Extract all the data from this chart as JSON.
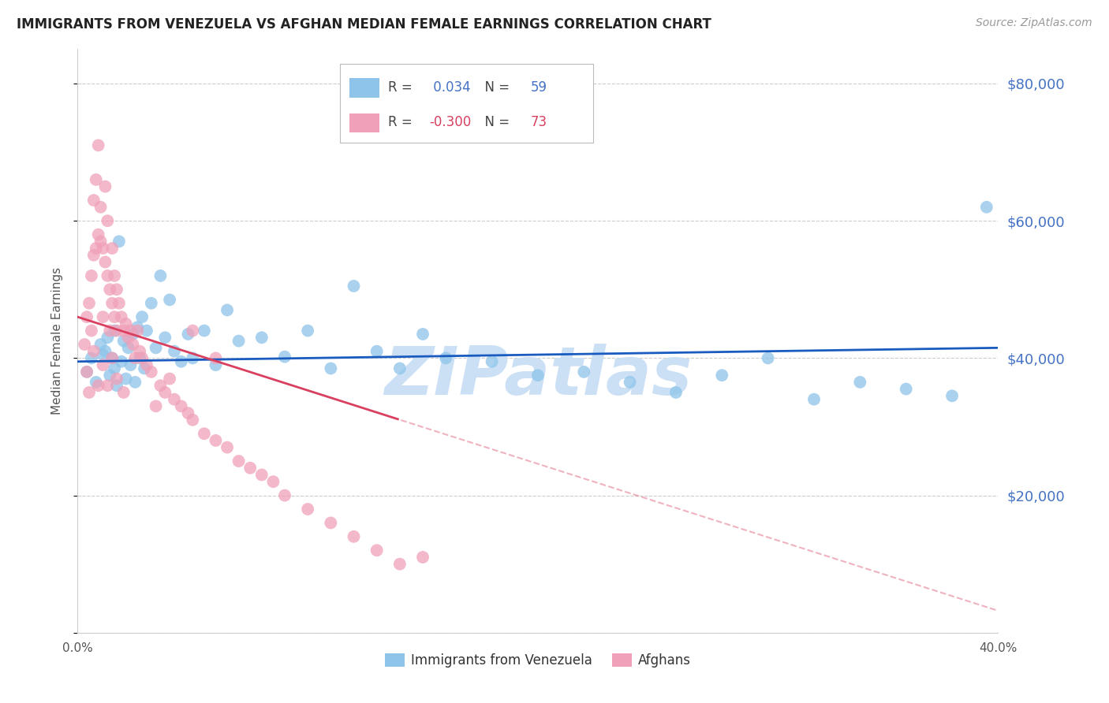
{
  "title": "IMMIGRANTS FROM VENEZUELA VS AFGHAN MEDIAN FEMALE EARNINGS CORRELATION CHART",
  "source": "Source: ZipAtlas.com",
  "ylabel": "Median Female Earnings",
  "xlim": [
    0.0,
    0.4
  ],
  "ylim": [
    0,
    85000
  ],
  "xticks": [
    0.0,
    0.1,
    0.2,
    0.3,
    0.4
  ],
  "xtick_labels": [
    "0.0%",
    "",
    "",
    "",
    "40.0%"
  ],
  "yticks_right": [
    20000,
    40000,
    60000,
    80000
  ],
  "ytick_labels_right": [
    "$20,000",
    "$40,000",
    "$60,000",
    "$80,000"
  ],
  "blue_R": 0.034,
  "blue_N": 59,
  "pink_R": -0.3,
  "pink_N": 73,
  "blue_color": "#8EC4EA",
  "pink_color": "#F0A0B8",
  "blue_line_color": "#1a5bbf",
  "pink_line_color": "#D94060",
  "watermark": "ZIPatlas",
  "watermark_color": "#cce0f5",
  "grid_color": "#cccccc",
  "blue_scatter_x": [
    0.004,
    0.006,
    0.008,
    0.01,
    0.011,
    0.012,
    0.013,
    0.014,
    0.015,
    0.016,
    0.016,
    0.017,
    0.018,
    0.019,
    0.02,
    0.021,
    0.022,
    0.023,
    0.024,
    0.025,
    0.026,
    0.027,
    0.028,
    0.029,
    0.03,
    0.032,
    0.034,
    0.036,
    0.038,
    0.04,
    0.042,
    0.045,
    0.048,
    0.05,
    0.055,
    0.06,
    0.065,
    0.07,
    0.08,
    0.09,
    0.1,
    0.11,
    0.12,
    0.13,
    0.14,
    0.15,
    0.16,
    0.18,
    0.2,
    0.22,
    0.24,
    0.26,
    0.28,
    0.3,
    0.32,
    0.34,
    0.36,
    0.38,
    0.395
  ],
  "blue_scatter_y": [
    38000,
    40000,
    36500,
    42000,
    40500,
    41000,
    43000,
    37500,
    40000,
    38500,
    44000,
    36000,
    57000,
    39500,
    42500,
    37000,
    41500,
    39000,
    43500,
    36500,
    44500,
    40000,
    46000,
    38500,
    44000,
    48000,
    41500,
    52000,
    43000,
    48500,
    41000,
    39500,
    43500,
    40000,
    44000,
    39000,
    47000,
    42500,
    43000,
    40200,
    44000,
    38500,
    50500,
    41000,
    38500,
    43500,
    40000,
    39500,
    37500,
    38000,
    36500,
    35000,
    37500,
    40000,
    34000,
    36500,
    35500,
    34500,
    62000
  ],
  "pink_scatter_x": [
    0.003,
    0.004,
    0.005,
    0.006,
    0.007,
    0.007,
    0.008,
    0.008,
    0.009,
    0.009,
    0.01,
    0.01,
    0.011,
    0.011,
    0.012,
    0.012,
    0.013,
    0.013,
    0.014,
    0.014,
    0.015,
    0.015,
    0.016,
    0.016,
    0.017,
    0.017,
    0.018,
    0.019,
    0.02,
    0.021,
    0.022,
    0.023,
    0.024,
    0.025,
    0.026,
    0.027,
    0.028,
    0.03,
    0.032,
    0.034,
    0.036,
    0.038,
    0.04,
    0.042,
    0.045,
    0.048,
    0.05,
    0.055,
    0.06,
    0.065,
    0.07,
    0.075,
    0.08,
    0.085,
    0.09,
    0.1,
    0.11,
    0.12,
    0.13,
    0.14,
    0.004,
    0.005,
    0.006,
    0.007,
    0.009,
    0.011,
    0.013,
    0.015,
    0.017,
    0.02,
    0.05,
    0.06,
    0.15
  ],
  "pink_scatter_y": [
    42000,
    46000,
    48000,
    52000,
    55000,
    63000,
    56000,
    66000,
    58000,
    71000,
    57000,
    62000,
    56000,
    46000,
    54000,
    65000,
    52000,
    60000,
    50000,
    44000,
    48000,
    56000,
    46000,
    52000,
    44000,
    50000,
    48000,
    46000,
    44000,
    45000,
    43000,
    44000,
    42000,
    40000,
    44000,
    41000,
    40000,
    39000,
    38000,
    33000,
    36000,
    35000,
    37000,
    34000,
    33000,
    32000,
    31000,
    29000,
    28000,
    27000,
    25000,
    24000,
    23000,
    22000,
    20000,
    18000,
    16000,
    14000,
    12000,
    10000,
    38000,
    35000,
    44000,
    41000,
    36000,
    39000,
    36000,
    40000,
    37000,
    35000,
    44000,
    40000,
    11000
  ]
}
